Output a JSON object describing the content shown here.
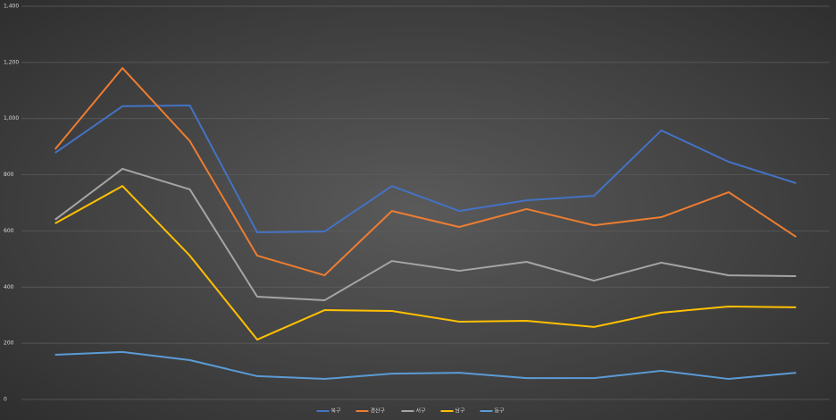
{
  "chart_data": {
    "type": "line",
    "categories": [
      null,
      null,
      null,
      null,
      null,
      null,
      null,
      null,
      null,
      null,
      null,
      null
    ],
    "series": [
      {
        "name": "북구",
        "color": "#4472c4",
        "values": [
          878,
          1044,
          1047,
          595,
          598,
          760,
          671,
          709,
          725,
          958,
          846,
          770
        ]
      },
      {
        "name": "경산구",
        "color": "#ed7d31",
        "values": [
          891,
          1180,
          920,
          512,
          442,
          671,
          614,
          678,
          620,
          649,
          738,
          579
        ]
      },
      {
        "name": "서구",
        "color": "#a5a5a5",
        "values": [
          640,
          821,
          748,
          366,
          353,
          493,
          458,
          490,
          423,
          487,
          442,
          439
        ]
      },
      {
        "name": "남구",
        "color": "#ffc000",
        "values": [
          627,
          760,
          512,
          213,
          318,
          315,
          277,
          280,
          258,
          309,
          331,
          328
        ]
      },
      {
        "name": "동구",
        "color": "#5b9bd5",
        "values": [
          159,
          169,
          140,
          83,
          73,
          92,
          95,
          76,
          76,
          102,
          73,
          95
        ]
      }
    ],
    "ylim": [
      0,
      1400
    ],
    "yticks": [
      0,
      200,
      400,
      600,
      800,
      {
        "value": 1000,
        "label": "1,000"
      },
      {
        "value": 1200,
        "label": "1,200"
      },
      {
        "value": 1400,
        "label": "1,400"
      }
    ],
    "grid": true,
    "legend": "bottom"
  }
}
